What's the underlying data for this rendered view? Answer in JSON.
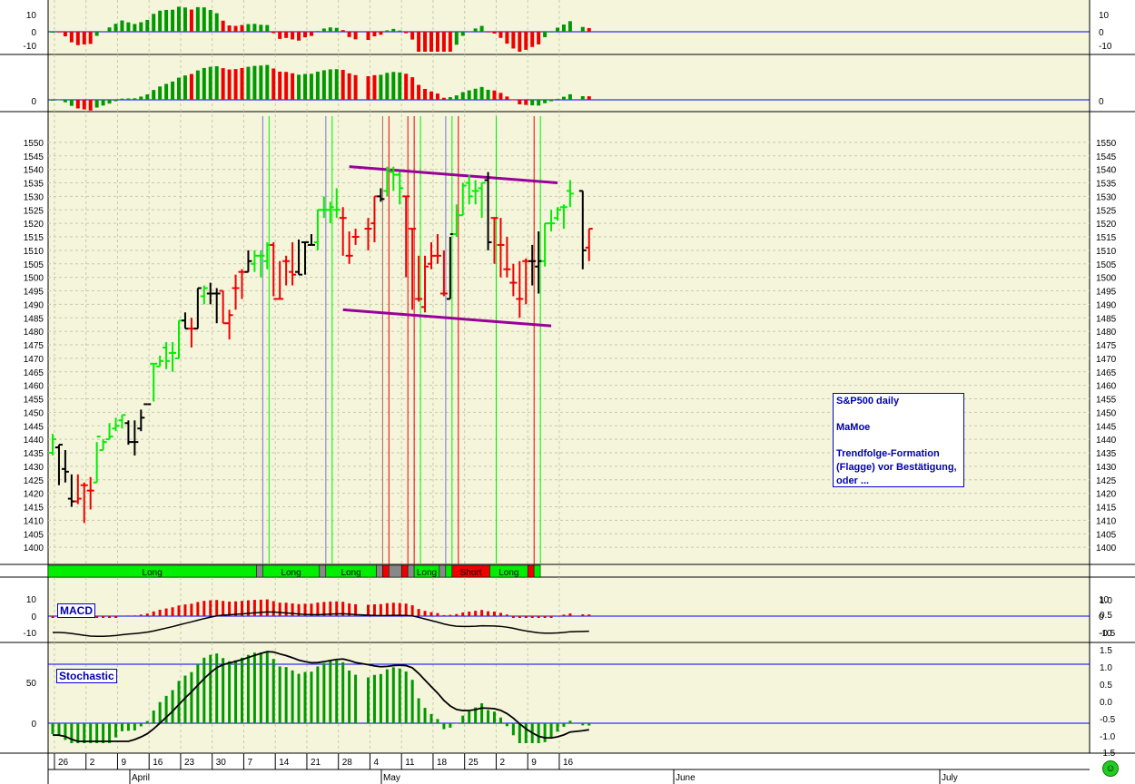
{
  "chart_data": {
    "type": "bar",
    "title": "",
    "note": {
      "line1": "S&P500 daily",
      "line2": "MaMoe",
      "line3": "Trendfolge-Formation",
      "line4": "(Flagge) vor Bestätigung,",
      "line5": "oder ..."
    },
    "price_axis": {
      "min": 1395,
      "max": 1555,
      "step": 5,
      "ticks": [
        1400,
        1405,
        1410,
        1415,
        1420,
        1425,
        1430,
        1435,
        1440,
        1445,
        1450,
        1455,
        1460,
        1465,
        1470,
        1475,
        1480,
        1485,
        1490,
        1495,
        1500,
        1505,
        1510,
        1515,
        1520,
        1525,
        1530,
        1535,
        1540,
        1545,
        1550
      ]
    },
    "x_axis": {
      "day_ticks": [
        "26",
        "2",
        "9",
        "16",
        "23",
        "30",
        "7",
        "14",
        "21",
        "28",
        "4",
        "11",
        "18",
        "25",
        "2",
        "9",
        "16"
      ],
      "month_labels": [
        "April",
        "May",
        "June",
        "July"
      ]
    },
    "bars": [
      {
        "o": 1435,
        "h": 1442,
        "l": 1434,
        "c": 1440,
        "col": "green"
      },
      {
        "o": 1437,
        "h": 1438,
        "l": 1423,
        "c": 1438,
        "col": "black"
      },
      {
        "o": 1429,
        "h": 1436,
        "l": 1424,
        "c": 1428,
        "col": "black"
      },
      {
        "o": 1418,
        "h": 1427,
        "l": 1415,
        "c": 1417,
        "col": "black"
      },
      {
        "o": 1417,
        "h": 1427,
        "l": 1416,
        "c": 1418,
        "col": "red"
      },
      {
        "o": 1423,
        "h": 1424,
        "l": 1409,
        "c": 1423,
        "col": "red"
      },
      {
        "o": 1421,
        "h": 1426,
        "l": 1414,
        "c": 1421,
        "col": "red"
      },
      {
        "o": 1424,
        "h": 1439,
        "l": 1424,
        "c": 1441,
        "col": "green"
      },
      {
        "o": 1436,
        "h": 1440,
        "l": 1436,
        "c": 1439,
        "col": "green"
      },
      {
        "o": 1440,
        "h": 1446,
        "l": 1440,
        "c": 1441,
        "col": "green"
      },
      {
        "o": 1444,
        "h": 1448,
        "l": 1443,
        "c": 1445,
        "col": "green"
      },
      {
        "o": 1447,
        "h": 1449,
        "l": 1444,
        "c": 1449,
        "col": "green"
      },
      {
        "o": 1446,
        "h": 1447,
        "l": 1438,
        "c": 1439,
        "col": "black"
      },
      {
        "o": 1439,
        "h": 1447,
        "l": 1434,
        "c": 1439,
        "col": "black"
      },
      {
        "o": 1444,
        "h": 1451,
        "l": 1443,
        "c": 1448,
        "col": "black"
      },
      {
        "o": 1453,
        "h": 1453,
        "l": 1453,
        "c": 1453,
        "col": "black"
      },
      {
        "o": 1468,
        "h": 1468,
        "l": 1454,
        "c": 1468,
        "col": "green"
      },
      {
        "o": 1467,
        "h": 1471,
        "l": 1467,
        "c": 1469,
        "col": "green"
      },
      {
        "o": 1474,
        "h": 1476,
        "l": 1466,
        "c": 1469,
        "col": "green"
      },
      {
        "o": 1472,
        "h": 1476,
        "l": 1465,
        "c": 1472,
        "col": "green"
      },
      {
        "o": 1470,
        "h": 1484,
        "l": 1470,
        "c": 1484,
        "col": "green"
      },
      {
        "o": 1484,
        "h": 1487,
        "l": 1481,
        "c": 1481,
        "col": "black"
      },
      {
        "o": 1481,
        "h": 1485,
        "l": 1474,
        "c": 1481,
        "col": "red"
      },
      {
        "o": 1481,
        "h": 1496,
        "l": 1481,
        "c": 1496,
        "col": "black"
      },
      {
        "o": 1493,
        "h": 1497,
        "l": 1490,
        "c": 1496,
        "col": "green"
      },
      {
        "o": 1494,
        "h": 1498,
        "l": 1490,
        "c": 1494,
        "col": "black"
      },
      {
        "o": 1494,
        "h": 1496,
        "l": 1483,
        "c": 1494,
        "col": "black"
      },
      {
        "o": 1495,
        "h": 1495,
        "l": 1483,
        "c": 1483,
        "col": "red"
      },
      {
        "o": 1483,
        "h": 1488,
        "l": 1477,
        "c": 1486,
        "col": "red"
      },
      {
        "o": 1496,
        "h": 1501,
        "l": 1488,
        "c": 1496,
        "col": "red"
      },
      {
        "o": 1502,
        "h": 1503,
        "l": 1492,
        "c": 1502,
        "col": "red"
      },
      {
        "o": 1502,
        "h": 1510,
        "l": 1502,
        "c": 1506,
        "col": "black"
      },
      {
        "o": 1505,
        "h": 1510,
        "l": 1502,
        "c": 1508,
        "col": "green"
      },
      {
        "o": 1508,
        "h": 1510,
        "l": 1500,
        "c": 1508,
        "col": "green"
      },
      {
        "o": 1506,
        "h": 1513,
        "l": 1503,
        "c": 1512,
        "col": "green"
      },
      {
        "o": 1512,
        "h": 1513,
        "l": 1493,
        "c": 1492,
        "col": "red"
      },
      {
        "o": 1492,
        "h": 1506,
        "l": 1492,
        "c": 1492,
        "col": "red"
      },
      {
        "o": 1506,
        "h": 1508,
        "l": 1497,
        "c": 1506,
        "col": "red"
      },
      {
        "o": 1502,
        "h": 1513,
        "l": 1497,
        "c": 1501,
        "col": "red"
      },
      {
        "o": 1502,
        "h": 1514,
        "l": 1501,
        "c": 1501,
        "col": "black"
      },
      {
        "o": 1513,
        "h": 1513,
        "l": 1501,
        "c": 1513,
        "col": "black"
      },
      {
        "o": 1512,
        "h": 1516,
        "l": 1512,
        "c": 1512,
        "col": "black"
      },
      {
        "o": 1513,
        "h": 1525,
        "l": 1510,
        "c": 1525,
        "col": "green"
      },
      {
        "o": 1525,
        "h": 1530,
        "l": 1522,
        "c": 1525,
        "col": "green"
      },
      {
        "o": 1525,
        "h": 1528,
        "l": 1520,
        "c": 1526,
        "col": "green"
      },
      {
        "o": 1525,
        "h": 1533,
        "l": 1522,
        "c": 1525,
        "col": "green"
      },
      {
        "o": 1522,
        "h": 1526,
        "l": 1508,
        "c": 1522,
        "col": "red"
      },
      {
        "o": 1508,
        "h": 1517,
        "l": 1505,
        "c": 1508,
        "col": "red"
      },
      {
        "o": 1515,
        "h": 1518,
        "l": 1512,
        "c": 1515,
        "col": "red"
      },
      {
        "o": 1518,
        "h": 1522,
        "l": 1510,
        "c": 1518,
        "col": "red"
      },
      {
        "o": 1520,
        "h": 1530,
        "l": 1513,
        "c": 1530,
        "col": "red"
      },
      {
        "o": 1530,
        "h": 1533,
        "l": 1528,
        "c": 1529,
        "col": "black"
      },
      {
        "o": 1532,
        "h": 1541,
        "l": 1530,
        "c": 1540,
        "col": "green"
      },
      {
        "o": 1539,
        "h": 1541,
        "l": 1532,
        "c": 1538,
        "col": "green"
      },
      {
        "o": 1538,
        "h": 1539,
        "l": 1527,
        "c": 1533,
        "col": "green"
      },
      {
        "o": 1530,
        "h": 1530,
        "l": 1500,
        "c": 1530,
        "col": "red"
      },
      {
        "o": 1518,
        "h": 1518,
        "l": 1488,
        "c": 1518,
        "col": "red"
      },
      {
        "o": 1492,
        "h": 1508,
        "l": 1491,
        "c": 1492,
        "col": "red"
      },
      {
        "o": 1489,
        "h": 1508,
        "l": 1487,
        "c": 1504,
        "col": "red"
      },
      {
        "o": 1505,
        "h": 1513,
        "l": 1503,
        "c": 1508,
        "col": "red"
      },
      {
        "o": 1508,
        "h": 1516,
        "l": 1505,
        "c": 1508,
        "col": "red"
      },
      {
        "o": 1494,
        "h": 1510,
        "l": 1493,
        "c": 1494,
        "col": "red"
      },
      {
        "o": 1492,
        "h": 1515,
        "l": 1492,
        "c": 1516,
        "col": "black"
      },
      {
        "o": 1516,
        "h": 1527,
        "l": 1515,
        "c": 1523,
        "col": "green"
      },
      {
        "o": 1523,
        "h": 1535,
        "l": 1523,
        "c": 1534,
        "col": "green"
      },
      {
        "o": 1535,
        "h": 1538,
        "l": 1527,
        "c": 1530,
        "col": "green"
      },
      {
        "o": 1532,
        "h": 1536,
        "l": 1527,
        "c": 1532,
        "col": "green"
      },
      {
        "o": 1533,
        "h": 1535,
        "l": 1522,
        "c": 1535,
        "col": "green"
      },
      {
        "o": 1536,
        "h": 1539,
        "l": 1510,
        "c": 1513,
        "col": "black"
      },
      {
        "o": 1522,
        "h": 1522,
        "l": 1505,
        "c": 1522,
        "col": "red"
      },
      {
        "o": 1512,
        "h": 1522,
        "l": 1500,
        "c": 1512,
        "col": "red"
      },
      {
        "o": 1503,
        "h": 1515,
        "l": 1500,
        "c": 1503,
        "col": "red"
      },
      {
        "o": 1498,
        "h": 1505,
        "l": 1493,
        "c": 1498,
        "col": "red"
      },
      {
        "o": 1492,
        "h": 1506,
        "l": 1485,
        "c": 1492,
        "col": "red"
      },
      {
        "o": 1506,
        "h": 1507,
        "l": 1490,
        "c": 1506,
        "col": "red"
      },
      {
        "o": 1506,
        "h": 1512,
        "l": 1497,
        "c": 1506,
        "col": "black"
      },
      {
        "o": 1504,
        "h": 1517,
        "l": 1494,
        "c": 1506,
        "col": "black"
      },
      {
        "o": 1506,
        "h": 1520,
        "l": 1504,
        "c": 1520,
        "col": "green"
      },
      {
        "o": 1520,
        "h": 1525,
        "l": 1517,
        "c": 1520,
        "col": "green"
      },
      {
        "o": 1522,
        "h": 1526,
        "l": 1521,
        "c": 1525,
        "col": "green"
      },
      {
        "o": 1526,
        "h": 1527,
        "l": 1518,
        "c": 1526,
        "col": "green"
      },
      {
        "o": 1532,
        "h": 1536,
        "l": 1526,
        "c": 1531,
        "col": "green"
      },
      {
        "o": 1532,
        "h": 1532,
        "l": 1503,
        "c": 1510,
        "col": "black"
      },
      {
        "o": 1511,
        "h": 1518,
        "l": 1506,
        "c": 1518,
        "col": "red"
      }
    ],
    "bar_days": [
      0,
      1,
      2,
      3,
      4,
      5,
      6,
      7,
      8,
      9,
      10,
      11,
      12,
      13,
      14,
      15,
      16,
      17,
      18,
      19,
      20,
      21,
      22,
      23,
      24,
      25,
      26,
      27,
      28,
      29,
      30,
      31,
      32,
      33,
      34,
      35,
      36,
      37,
      38,
      39,
      40,
      41,
      42,
      43,
      44,
      45,
      46,
      47,
      48,
      50,
      51,
      52,
      53,
      54,
      55,
      56,
      57,
      58,
      59,
      60,
      61,
      62,
      63,
      64,
      65,
      66,
      67,
      68,
      69,
      70,
      71,
      72,
      73,
      74,
      75,
      76,
      77,
      78,
      79,
      80,
      81,
      82,
      84,
      85
    ],
    "signals": [
      {
        "label": "Long",
        "from": 0,
        "to": 33,
        "color": "green"
      },
      {
        "label": "",
        "from": 33,
        "to": 34,
        "color": "gray"
      },
      {
        "label": "Long",
        "from": 34,
        "to": 43,
        "color": "green"
      },
      {
        "label": "",
        "from": 43,
        "to": 44,
        "color": "gray"
      },
      {
        "label": "Long",
        "from": 44,
        "to": 52,
        "color": "green"
      },
      {
        "label": "",
        "from": 52,
        "to": 53,
        "color": "gray"
      },
      {
        "label": "",
        "from": 53,
        "to": 54,
        "color": "red"
      },
      {
        "label": "",
        "from": 54,
        "to": 56,
        "color": "gray"
      },
      {
        "label": "",
        "from": 56,
        "to": 57,
        "color": "red"
      },
      {
        "label": "",
        "from": 57,
        "to": 58,
        "color": "gray"
      },
      {
        "label": "Long",
        "from": 58,
        "to": 62,
        "color": "green"
      },
      {
        "label": "",
        "from": 62,
        "to": 63,
        "color": "gray"
      },
      {
        "label": "",
        "from": 63,
        "to": 64,
        "color": "green"
      },
      {
        "label": "Short",
        "from": 64,
        "to": 70,
        "color": "red"
      },
      {
        "label": "Long",
        "from": 70,
        "to": 76,
        "color": "green"
      },
      {
        "label": "",
        "from": 76,
        "to": 77,
        "color": "red"
      },
      {
        "label": "",
        "from": 77,
        "to": 78,
        "color": "green"
      }
    ],
    "channel": {
      "upper": [
        [
          47,
          1541
        ],
        [
          80,
          1535
        ]
      ],
      "lower": [
        [
          46,
          1488
        ],
        [
          79,
          1482
        ]
      ]
    },
    "indicators": {
      "macd_label": "MACD",
      "stoch_label": "Stochastic",
      "macd_left_ticks": [
        "10",
        "0",
        "-10"
      ],
      "stoch_left_ticks": [
        "50",
        "0"
      ],
      "stoch_right_ticks": [
        "1.0",
        "0.5",
        "0.0",
        "-0.5",
        "-1.0",
        "-1.5"
      ],
      "macd_right_ticks": [
        "10",
        "0",
        "-10"
      ],
      "top1_left_ticks": [
        "10",
        "0",
        "-10"
      ],
      "top1_right_ticks": [
        "10",
        "0",
        "-10"
      ],
      "top2_left_ticks": [
        "0"
      ],
      "top2_right_ticks": [
        "0"
      ]
    },
    "colors": {
      "up": "#00ee00",
      "down": "#ee0000",
      "neutral": "#000000",
      "grid": "#c8c8a8",
      "bg": "#f5f5dc",
      "axis": "#0000ff",
      "channel": "#990099",
      "signal_green": "#00ee00",
      "signal_red": "#ee0000",
      "signal_gray": "#888888"
    }
  }
}
